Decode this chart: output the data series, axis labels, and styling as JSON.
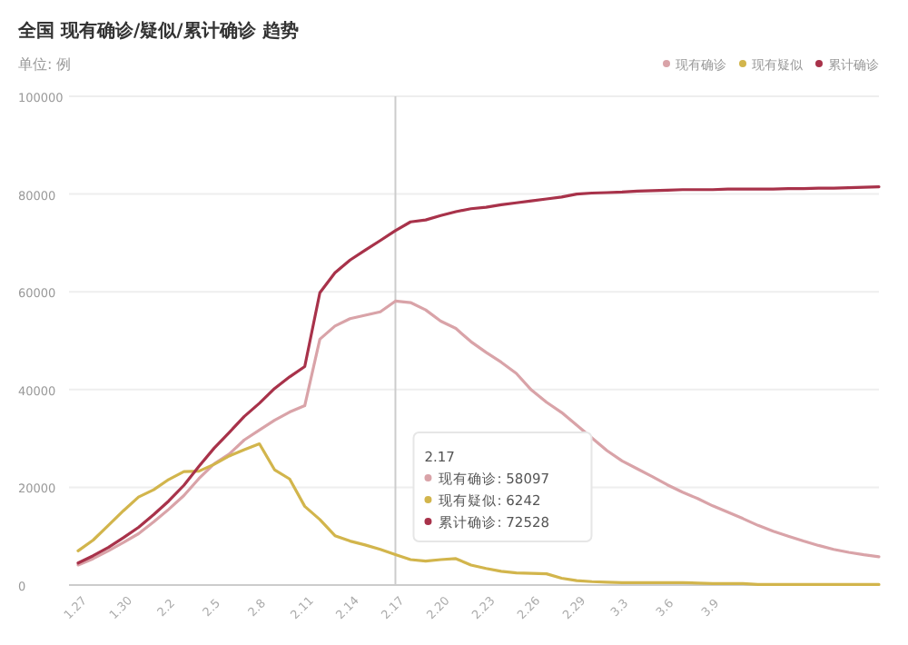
{
  "chart_data": {
    "type": "line",
    "title": "全国 现有确诊/疑似/累计确诊 趋势",
    "subtitle": "单位: 例",
    "categories": [
      "1.27",
      null,
      null,
      "1.30",
      null,
      null,
      "2.2",
      null,
      null,
      "2.5",
      null,
      null,
      "2.8",
      null,
      null,
      "2.11",
      null,
      null,
      "2.14",
      null,
      null,
      "2.17",
      null,
      null,
      "2.20",
      null,
      null,
      "2.23",
      null,
      null,
      "2.26",
      null,
      null,
      "2.29",
      null,
      null,
      "3.3",
      null,
      null,
      "3.6",
      null,
      null,
      "3.9",
      null,
      null,
      null,
      null,
      null,
      null,
      null,
      null,
      null,
      null,
      null
    ],
    "series": [
      {
        "name": "现有确诊",
        "color": "#d9a3a8",
        "values": [
          4100,
          5400,
          7000,
          8700,
          10500,
          12900,
          15500,
          18300,
          21800,
          24800,
          26800,
          29700,
          31700,
          33700,
          35400,
          36700,
          50300,
          53000,
          54500,
          55200,
          55900,
          58097,
          57800,
          56300,
          54000,
          52500,
          49800,
          47600,
          45600,
          43300,
          39900,
          37400,
          35300,
          32700,
          30100,
          27500,
          25400,
          23800,
          22200,
          20500,
          19000,
          17700,
          16200,
          14900,
          13600,
          12200,
          11000,
          10000,
          9000,
          8100,
          7300,
          6700,
          6200,
          5800
        ]
      },
      {
        "name": "现有疑似",
        "color": "#d2b54c",
        "values": [
          7000,
          9200,
          12200,
          15200,
          18000,
          19500,
          21600,
          23200,
          23300,
          24700,
          26400,
          27700,
          28900,
          23600,
          21700,
          16100,
          13400,
          10100,
          9000,
          8200,
          7300,
          6242,
          5200,
          4900,
          5200,
          5400,
          4100,
          3400,
          2800,
          2500,
          2400,
          2300,
          1400,
          900,
          700,
          600,
          500,
          500,
          500,
          500,
          500,
          400,
          300,
          300,
          300,
          100,
          100,
          100,
          100,
          100,
          100,
          100,
          100,
          100
        ]
      },
      {
        "name": "累计确诊",
        "color": "#a8324a",
        "values": [
          4500,
          6000,
          7700,
          9700,
          11800,
          14400,
          17200,
          20400,
          24300,
          28000,
          31200,
          34500,
          37200,
          40200,
          42600,
          44700,
          59800,
          63900,
          66500,
          68500,
          70500,
          72528,
          74300,
          74700,
          75600,
          76400,
          77000,
          77300,
          77800,
          78200,
          78600,
          79000,
          79400,
          80000,
          80200,
          80300,
          80400,
          80600,
          80700,
          80800,
          80900,
          80900,
          80900,
          81000,
          81000,
          81000,
          81000,
          81100,
          81100,
          81200,
          81200,
          81300,
          81400,
          81500
        ]
      }
    ],
    "ylim": [
      0,
      100000
    ],
    "yticks": [
      0,
      20000,
      40000,
      60000,
      80000,
      100000
    ],
    "grid": "y",
    "legend": "top right",
    "marker": "none",
    "line_style": "solid",
    "ref_lines": [
      {
        "axis": "x",
        "value": "2.17",
        "color": "#cccccc",
        "label": "2.17"
      }
    ],
    "annotations": [
      "现有确诊: 58097",
      "现有疑似: 6242",
      "累计确诊: 72528"
    ]
  }
}
